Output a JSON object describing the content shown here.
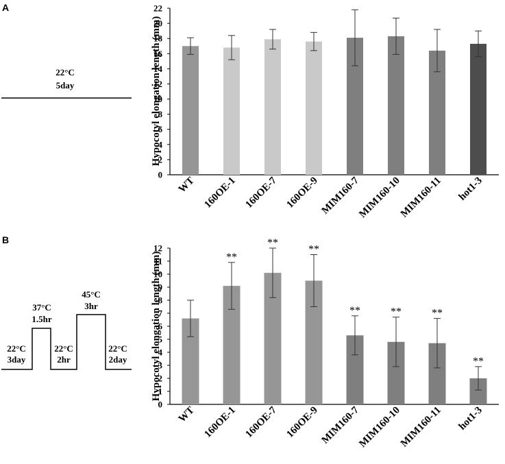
{
  "panels": [
    {
      "letter": "A",
      "condition": {
        "temp": "22°C",
        "duration": "5day"
      }
    },
    {
      "letter": "B",
      "steps": [
        {
          "temp": "22°C",
          "duration": "3day"
        },
        {
          "temp": "37°C",
          "duration": "1.5hr"
        },
        {
          "temp": "22°C",
          "duration": "2hr"
        },
        {
          "temp": "45°C",
          "duration": "3hr"
        },
        {
          "temp": "22°C",
          "duration": "2day"
        }
      ]
    }
  ],
  "colors": {
    "wt": "#969696",
    "oe": "#c9c9c9",
    "mim": "#7f7f7f",
    "hot": "#4d4d4d"
  },
  "chart_data": [
    {
      "type": "bar",
      "title": "",
      "xlabel": "",
      "ylabel": "Hypocotyl elongation length (mm)",
      "ylim": [
        0,
        22
      ],
      "yticks": [
        0,
        2,
        4,
        6,
        8,
        10,
        12,
        14,
        16,
        18,
        20,
        22
      ],
      "categories": [
        "WT",
        "160OE-1",
        "160OE-7",
        "160OE-9",
        "MIM160-7",
        "MIM160-10",
        "MIM160-11",
        "hot1-3"
      ],
      "values": [
        17.0,
        16.8,
        17.9,
        17.6,
        18.1,
        18.3,
        16.4,
        17.3
      ],
      "errors": [
        1.1,
        1.6,
        1.3,
        1.2,
        3.7,
        2.4,
        2.8,
        1.7
      ],
      "significance": [
        "",
        "",
        "",
        "",
        "",
        "",
        "",
        ""
      ],
      "bar_colors": [
        "#969696",
        "#c9c9c9",
        "#c9c9c9",
        "#c9c9c9",
        "#7f7f7f",
        "#7f7f7f",
        "#7f7f7f",
        "#4d4d4d"
      ]
    },
    {
      "type": "bar",
      "title": "",
      "xlabel": "",
      "ylabel": "Hypocotyl elongation length (mm)",
      "ylim": [
        0,
        12
      ],
      "yticks": [
        0,
        1,
        2,
        3,
        4,
        5,
        6,
        7,
        8,
        9,
        10,
        11,
        12
      ],
      "categories": [
        "WT",
        "160OE-1",
        "160OE-7",
        "160OE-9",
        "MIM160-7",
        "MIM160-10",
        "MIM160-11",
        "hot1-3"
      ],
      "values": [
        6.6,
        9.1,
        10.1,
        9.5,
        5.3,
        4.8,
        4.7,
        2.0
      ],
      "errors": [
        1.4,
        1.8,
        1.9,
        2.0,
        1.5,
        1.9,
        1.9,
        0.9
      ],
      "significance": [
        "",
        "**",
        "**",
        "**",
        "**",
        "**",
        "**",
        "**"
      ],
      "bar_colors": [
        "#969696",
        "#969696",
        "#969696",
        "#969696",
        "#7f7f7f",
        "#7f7f7f",
        "#7f7f7f",
        "#7f7f7f"
      ]
    }
  ]
}
